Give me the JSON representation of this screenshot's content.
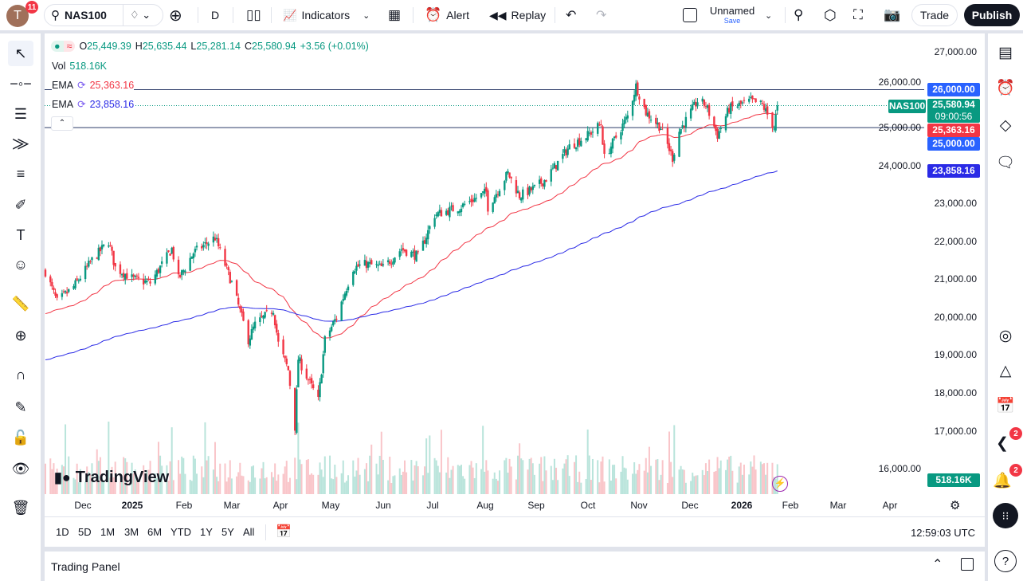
{
  "header": {
    "avatar_letter": "T",
    "avatar_badge": "11",
    "symbol": "NAS100",
    "interval": "D",
    "indicators_label": "Indicators",
    "alert_label": "Alert",
    "replay_label": "Replay",
    "layout_name": "Unnamed",
    "layout_save": "Save",
    "trade_label": "Trade",
    "publish_label": "Publish"
  },
  "legend": {
    "open_label": "O",
    "open": "25,449.39",
    "high_label": "H",
    "high": "25,635.44",
    "low_label": "L",
    "low": "25,281.14",
    "close_label": "C",
    "close": "25,580.94",
    "change": "+3.56 (+0.01%)",
    "vol_label": "Vol",
    "vol": "518.16K",
    "ema1_label": "EMA",
    "ema1": "25,363.16",
    "ema2_label": "EMA",
    "ema2": "23,858.16"
  },
  "price_axis": {
    "labels": [
      "27,000.00",
      "26,000.00",
      "25,000.00",
      "24,000.00",
      "23,000.00",
      "22,000.00",
      "21,000.00",
      "20,000.00",
      "19,000.00",
      "18,000.00",
      "17,000.00",
      "16,000.00"
    ],
    "tags": {
      "line_high": "26,000.00",
      "symbol": "NAS100",
      "last": "25,580.94",
      "countdown": "09:00:56",
      "ema1": "25,363.16",
      "line_low": "25,000.00",
      "ema2": "23,858.16",
      "volume": "518.16K"
    }
  },
  "time_axis": {
    "labels": [
      "Dec",
      "2025",
      "Feb",
      "Mar",
      "Apr",
      "May",
      "Jun",
      "Jul",
      "Aug",
      "Sep",
      "Oct",
      "Nov",
      "Dec",
      "2026",
      "Feb",
      "Mar",
      "Apr"
    ]
  },
  "bottom": {
    "ranges": [
      "1D",
      "5D",
      "1M",
      "3M",
      "6M",
      "YTD",
      "1Y",
      "5Y",
      "All"
    ],
    "clock": "12:59:03 UTC"
  },
  "trading_panel": {
    "title": "Trading Panel"
  },
  "watermark": "TradingView",
  "right_badges": {
    "news": "2",
    "notifications": "2"
  },
  "colors": {
    "up": "#089981",
    "down": "#f23645",
    "ema1": "#f23645",
    "ema2": "#2a2ae6",
    "hline": "#2962ff",
    "publish_bg": "#131722"
  },
  "chart_data": {
    "type": "candlestick",
    "symbol": "NAS100",
    "interval": "D",
    "ylim": [
      16000,
      27000
    ],
    "horizontal_lines": [
      26000,
      25000
    ],
    "ema_last": [
      25363.16,
      23858.16
    ],
    "close_path": [
      [
        "2024-11-08",
        21200
      ],
      [
        "2024-11-15",
        20400
      ],
      [
        "2024-11-25",
        20800
      ],
      [
        "2024-12-06",
        21500
      ],
      [
        "2024-12-16",
        22000
      ],
      [
        "2024-12-20",
        21300
      ],
      [
        "2024-12-31",
        21000
      ],
      [
        "2025-01-10",
        20900
      ],
      [
        "2025-01-23",
        21800
      ],
      [
        "2025-01-27",
        21000
      ],
      [
        "2025-02-05",
        21700
      ],
      [
        "2025-02-18",
        22100
      ],
      [
        "2025-02-28",
        20900
      ],
      [
        "2025-03-10",
        19400
      ],
      [
        "2025-03-14",
        19800
      ],
      [
        "2025-03-25",
        20200
      ],
      [
        "2025-03-28",
        19300
      ],
      [
        "2025-04-03",
        18600
      ],
      [
        "2025-04-07",
        17100
      ],
      [
        "2025-04-09",
        18900
      ],
      [
        "2025-04-21",
        17800
      ],
      [
        "2025-04-25",
        19400
      ],
      [
        "2025-05-02",
        20000
      ],
      [
        "2025-05-12",
        21300
      ],
      [
        "2025-05-20",
        21400
      ],
      [
        "2025-05-30",
        21300
      ],
      [
        "2025-06-10",
        21800
      ],
      [
        "2025-06-20",
        21600
      ],
      [
        "2025-06-30",
        22700
      ],
      [
        "2025-07-15",
        22900
      ],
      [
        "2025-07-31",
        23300
      ],
      [
        "2025-08-01",
        22900
      ],
      [
        "2025-08-13",
        23800
      ],
      [
        "2025-08-20",
        23200
      ],
      [
        "2025-08-29",
        23400
      ],
      [
        "2025-09-05",
        23650
      ],
      [
        "2025-09-19",
        24500
      ],
      [
        "2025-09-30",
        24800
      ],
      [
        "2025-10-08",
        25100
      ],
      [
        "2025-10-10",
        24200
      ],
      [
        "2025-10-24",
        25300
      ],
      [
        "2025-10-29",
        26100
      ],
      [
        "2025-11-04",
        25400
      ],
      [
        "2025-11-13",
        25000
      ],
      [
        "2025-11-20",
        24200
      ],
      [
        "2025-11-24",
        24900
      ],
      [
        "2025-12-05",
        25700
      ],
      [
        "2025-12-10",
        25600
      ],
      [
        "2025-12-17",
        24800
      ],
      [
        "2025-12-24",
        25500
      ],
      [
        "2026-01-06",
        25700
      ],
      [
        "2026-01-13",
        25600
      ],
      [
        "2026-01-20",
        25000
      ],
      [
        "2026-01-22",
        25580.94
      ]
    ]
  }
}
